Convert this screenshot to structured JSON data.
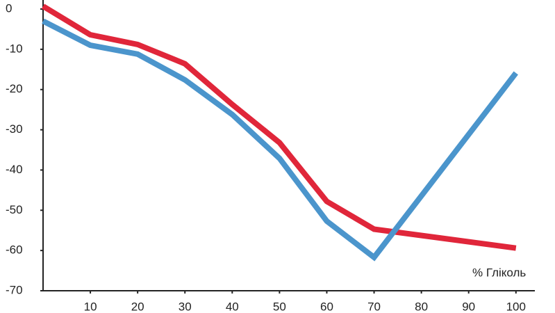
{
  "chart_data": {
    "type": "line",
    "x_label": "% Гліколь",
    "x": [
      0,
      10,
      20,
      30,
      40,
      50,
      60,
      70,
      100
    ],
    "series": [
      {
        "color": "#e0263a",
        "values": [
          0.7,
          -6.4,
          -8.8,
          -13.6,
          -23.7,
          -33.2,
          -47.8,
          -54.7,
          -59.4
        ]
      },
      {
        "color": "#4b95cc",
        "values": [
          -3,
          -9,
          -11.2,
          -17.6,
          -26.2,
          -37.1,
          -52.7,
          -61.7,
          -15.9
        ]
      }
    ],
    "xlim": [
      0,
      104
    ],
    "ylim": [
      -70,
      0
    ],
    "xticks": [
      10,
      20,
      30,
      40,
      50,
      60,
      70,
      80,
      90,
      100
    ],
    "yticks": [
      0,
      -10,
      -20,
      -30,
      -40,
      -50,
      -60,
      -70
    ]
  }
}
